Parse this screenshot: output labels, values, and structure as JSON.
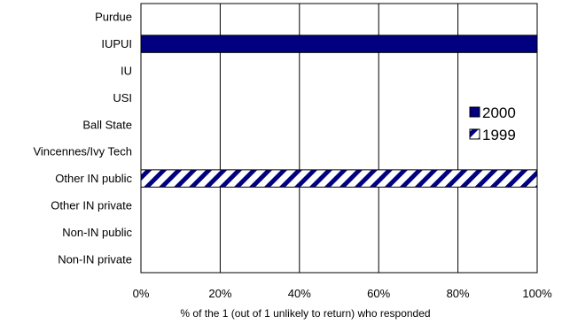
{
  "chart_data": {
    "type": "bar",
    "orientation": "horizontal",
    "categories": [
      "Purdue",
      "IUPUI",
      "IU",
      "USI",
      "Ball State",
      "Vincennes/Ivy Tech",
      "Other IN public",
      "Other IN private",
      "Non-IN public",
      "Non-IN private"
    ],
    "series": [
      {
        "name": "2000",
        "values": [
          0,
          100,
          0,
          0,
          0,
          0,
          0,
          0,
          0,
          0
        ],
        "color": "#000080",
        "pattern": "solid"
      },
      {
        "name": "1999",
        "values": [
          0,
          0,
          0,
          0,
          0,
          0,
          100,
          0,
          0,
          0
        ],
        "color": "#000080",
        "pattern": "diagonal-stripes"
      }
    ],
    "xlim": [
      0,
      100
    ],
    "xticks": [
      "0%",
      "20%",
      "40%",
      "60%",
      "80%",
      "100%"
    ],
    "xlabel": "% of the 1 (out of 1 unlikely to return) who responded",
    "ylabel": "",
    "title": "",
    "grid": "vertical",
    "legend_position": "right",
    "legend_order": [
      "2000",
      "1999"
    ]
  }
}
